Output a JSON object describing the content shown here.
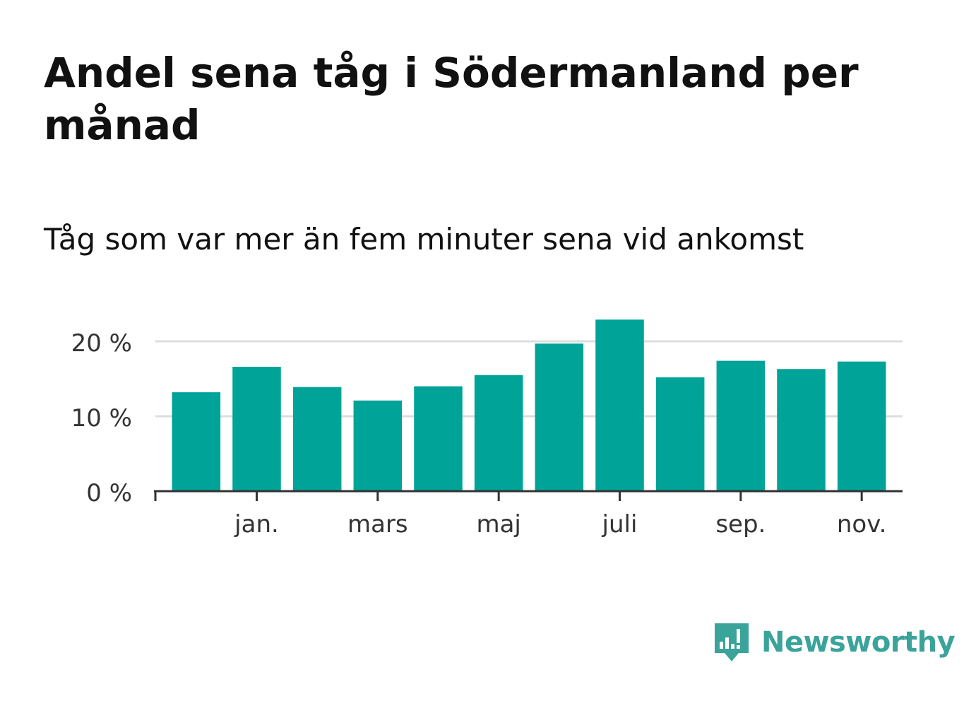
{
  "title": "Andel sena tåg i Södermanland per månad",
  "subtitle": "Tåg som var mer än fem minuter sena vid ankomst",
  "brand": {
    "name": "Newsworthy",
    "color": "#3aa39a"
  },
  "chart_data": {
    "type": "bar",
    "title": "Andel sena tåg i Södermanland per månad",
    "subtitle": "Tåg som var mer än fem minuter sena vid ankomst",
    "xlabel": "",
    "ylabel": "",
    "ylim": [
      0,
      25
    ],
    "y_ticks": [
      0,
      10,
      20
    ],
    "y_tick_labels": [
      "0 %",
      "10 %",
      "20 %"
    ],
    "bar_color": "#00a398",
    "grid": true,
    "categories": [
      "dec.",
      "jan.",
      "feb.",
      "mars",
      "apr.",
      "maj",
      "juni",
      "juli",
      "aug.",
      "sep.",
      "okt.",
      "nov."
    ],
    "x_tick_labels": [
      {
        "category": "jan.",
        "label": "jan."
      },
      {
        "category": "mars",
        "label": "mars"
      },
      {
        "category": "maj",
        "label": "maj"
      },
      {
        "category": "juli",
        "label": "juli"
      },
      {
        "category": "sep.",
        "label": "sep."
      },
      {
        "category": "nov.",
        "label": "nov."
      }
    ],
    "values": [
      13.2,
      16.6,
      13.9,
      12.1,
      14.0,
      15.5,
      19.7,
      22.9,
      15.2,
      17.4,
      16.3,
      17.3
    ]
  }
}
